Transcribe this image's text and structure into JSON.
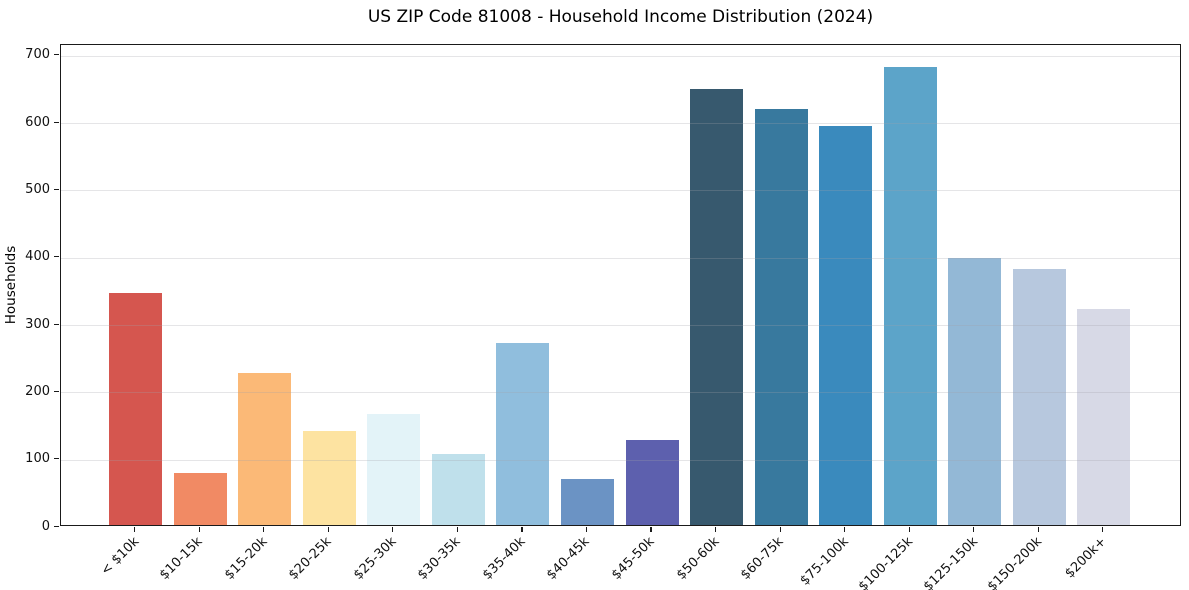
{
  "chart_data": {
    "type": "bar",
    "title": "US ZIP Code 81008 - Household Income Distribution (2024)",
    "xlabel": "",
    "ylabel": "Households",
    "categories": [
      "< $10k",
      "$10-15k",
      "$15-20k",
      "$20-25k",
      "$25-30k",
      "$30-35k",
      "$35-40k",
      "$40-45k",
      "$45-50k",
      "$50-60k",
      "$60-75k",
      "$75-100k",
      "$100-125k",
      "$125-150k",
      "$150-200k",
      "$200k+"
    ],
    "values": [
      345,
      78,
      226,
      140,
      165,
      105,
      270,
      69,
      126,
      648,
      618,
      593,
      680,
      396,
      381,
      321
    ],
    "bar_colors": [
      "#d5564f",
      "#f18a64",
      "#fbb977",
      "#fde3a1",
      "#e3f3f8",
      "#bfe0eb",
      "#90bedd",
      "#6b93c4",
      "#5d60ae",
      "#37596e",
      "#38799e",
      "#3a8abd",
      "#5ca4c9",
      "#93b8d6",
      "#b7c8de",
      "#d7d9e6"
    ],
    "ylim": [
      0,
      716
    ],
    "yticks": [
      0,
      100,
      200,
      300,
      400,
      500,
      600,
      700
    ],
    "grid": "horizontal",
    "legend": "none",
    "background_color": "#ffffff",
    "axis_color": "#1a1a1a",
    "grid_color": "#e8e8ea",
    "x_tick_rotation_deg": 45
  }
}
